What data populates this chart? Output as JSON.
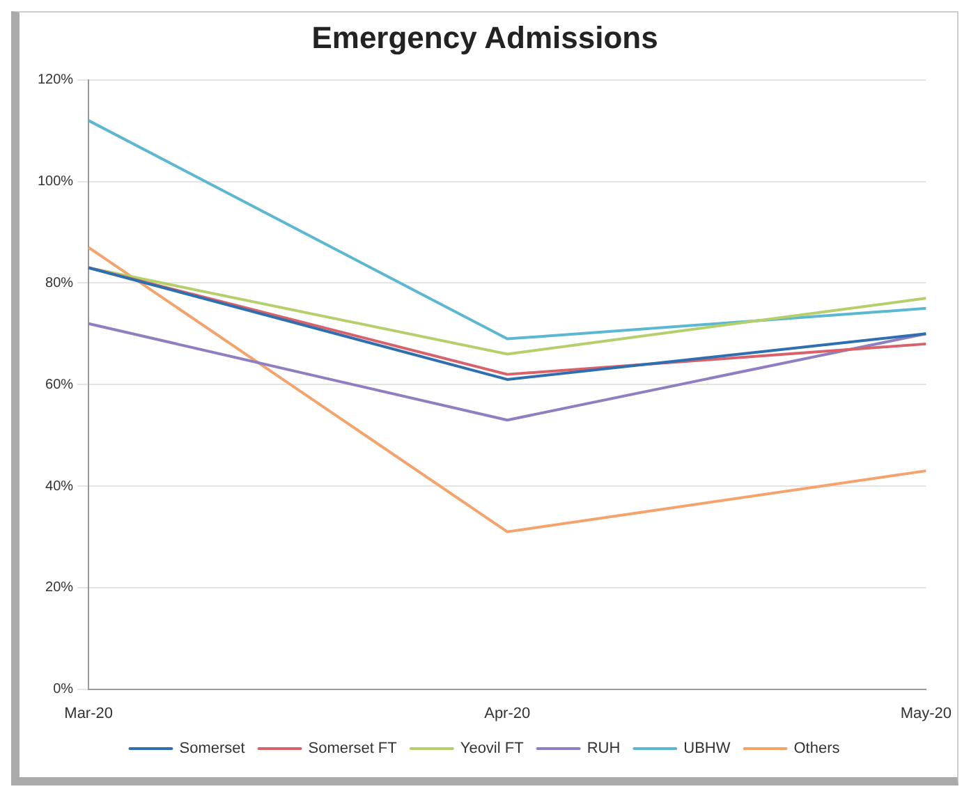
{
  "chart_data": {
    "type": "line",
    "title": "Emergency Admissions",
    "categories": [
      "Mar-20",
      "Apr-20",
      "May-20"
    ],
    "series": [
      {
        "name": "Somerset",
        "color": "#2e6fb0",
        "values": [
          83,
          61,
          70
        ]
      },
      {
        "name": "Somerset FT",
        "color": "#d9626a",
        "values": [
          83,
          62,
          68
        ]
      },
      {
        "name": "Yeovil FT",
        "color": "#b5cf6b",
        "values": [
          83,
          66,
          77
        ]
      },
      {
        "name": "RUH",
        "color": "#8f7fc0",
        "values": [
          72,
          53,
          70
        ]
      },
      {
        "name": "UBHW",
        "color": "#5bb8d0",
        "values": [
          112,
          69,
          75
        ]
      },
      {
        "name": "Others",
        "color": "#f4a46a",
        "values": [
          87,
          31,
          43
        ]
      }
    ],
    "ylim": [
      0,
      120
    ],
    "yticks": [
      {
        "value": 0,
        "label": "0%"
      },
      {
        "value": 20,
        "label": "20%"
      },
      {
        "value": 40,
        "label": "40%"
      },
      {
        "value": 60,
        "label": "60%"
      },
      {
        "value": 80,
        "label": "80%"
      },
      {
        "value": 100,
        "label": "100%"
      },
      {
        "value": 120,
        "label": "120%"
      }
    ],
    "grid": "y",
    "legend": "bottom",
    "marker": "none",
    "line_style": "solid"
  }
}
